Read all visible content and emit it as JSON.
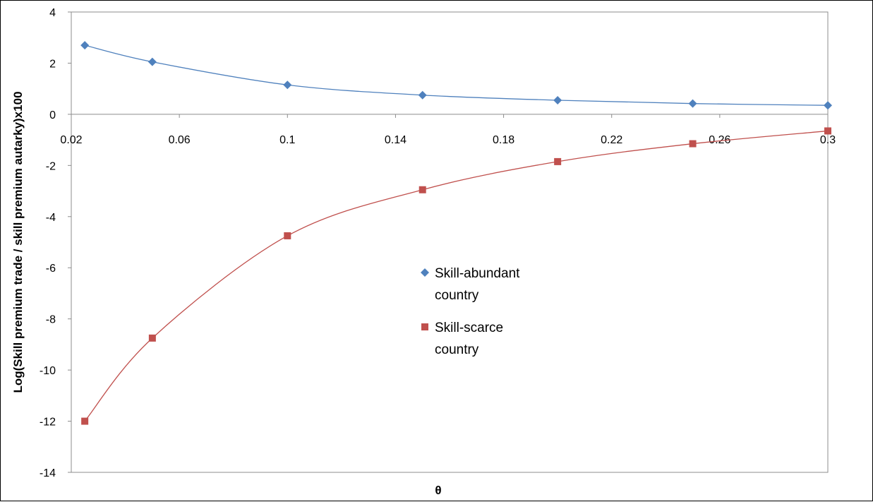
{
  "chart_data": {
    "type": "scatter",
    "title": "",
    "xlabel": "θ",
    "ylabel": "Log(Skill premium trade / skill premium autarky)x100",
    "xlim": [
      0.02,
      0.3
    ],
    "ylim": [
      -14,
      4
    ],
    "x_ticks": [
      0.02,
      0.06,
      0.1,
      0.14,
      0.18,
      0.22,
      0.26,
      0.3
    ],
    "x_tick_labels": [
      "0.02",
      "0.06",
      "0.1",
      "0.14",
      "0.18",
      "0.22",
      "0.26",
      "0.3"
    ],
    "y_ticks": [
      4,
      2,
      0,
      -2,
      -4,
      -6,
      -8,
      -10,
      -12,
      -14
    ],
    "y_tick_labels": [
      "4",
      "2",
      "0",
      "-2",
      "-4",
      "-6",
      "-8",
      "-10",
      "-12",
      "-14"
    ],
    "grid": false,
    "legend_position": "center",
    "trendlines": true,
    "series": [
      {
        "name": "Skill-abundant country",
        "legend_lines": [
          "Skill-abundant",
          "country"
        ],
        "marker": "diamond",
        "color": "#4F81BD",
        "x": [
          0.025,
          0.05,
          0.1,
          0.15,
          0.2,
          0.25,
          0.3
        ],
        "y": [
          2.7,
          2.05,
          1.15,
          0.75,
          0.55,
          0.42,
          0.35
        ]
      },
      {
        "name": "Skill-scarce country",
        "legend_lines": [
          "Skill-scarce",
          "country"
        ],
        "marker": "square",
        "color": "#C0504D",
        "x": [
          0.025,
          0.05,
          0.1,
          0.15,
          0.2,
          0.25,
          0.3
        ],
        "y": [
          -12.0,
          -8.75,
          -4.75,
          -2.95,
          -1.85,
          -1.15,
          -0.65
        ]
      }
    ]
  }
}
